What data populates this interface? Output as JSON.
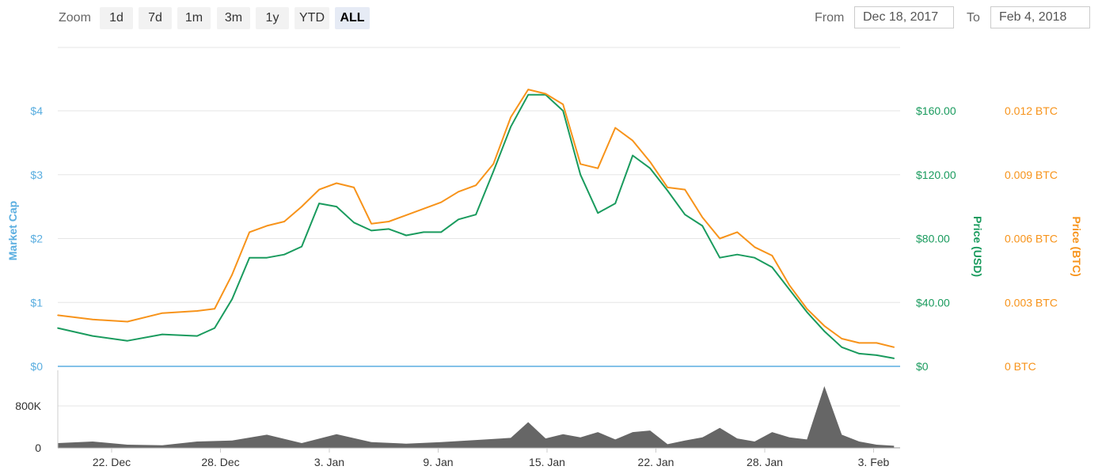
{
  "toolbar": {
    "zoom_label": "Zoom",
    "zoom_buttons": [
      "1d",
      "7d",
      "1m",
      "3m",
      "1y",
      "YTD",
      "ALL"
    ],
    "active_zoom": "ALL",
    "from_label": "From",
    "from_value": "Dec 18, 2017",
    "to_label": "To",
    "to_value": "Feb 4, 2018"
  },
  "chart_data": {
    "type": "line",
    "xlabel": "",
    "x_ticks": [
      "22. Dec",
      "28. Dec",
      "3. Jan",
      "9. Jan",
      "15. Jan",
      "22. Jan",
      "28. Jan",
      "3. Feb"
    ],
    "left_axis": {
      "title": "Market Cap",
      "ticks": [
        "$0",
        "$1",
        "$2",
        "$3",
        "$4"
      ],
      "range": [
        0,
        4
      ],
      "color": "#5aaee0"
    },
    "usd_axis": {
      "title": "Price (USD)",
      "ticks": [
        "$0",
        "$40.00",
        "$80.00",
        "$120.00",
        "$160.00"
      ],
      "range": [
        0,
        160
      ],
      "color": "#1a9b5e"
    },
    "btc_axis": {
      "title": "Price (BTC)",
      "ticks": [
        "0 BTC",
        "0.003 BTC",
        "0.006 BTC",
        "0.009 BTC",
        "0.012 BTC"
      ],
      "range": [
        0,
        0.012
      ],
      "color": "#f7931a"
    },
    "volume_axis": {
      "ticks": [
        "0",
        "800K"
      ],
      "range": [
        0,
        800000
      ]
    },
    "market_cap_note": "Market cap series rendered flat at $0",
    "x_range": [
      "2017-12-18",
      "2018-02-04"
    ],
    "series": [
      {
        "name": "Price (USD)",
        "color": "#1a9b5e",
        "x": [
          "2017-12-18",
          "2017-12-20",
          "2017-12-22",
          "2017-12-24",
          "2017-12-26",
          "2017-12-27",
          "2017-12-28",
          "2017-12-29",
          "2017-12-30",
          "2017-12-31",
          "2018-01-01",
          "2018-01-02",
          "2018-01-03",
          "2018-01-04",
          "2018-01-05",
          "2018-01-06",
          "2018-01-07",
          "2018-01-08",
          "2018-01-09",
          "2018-01-10",
          "2018-01-11",
          "2018-01-12",
          "2018-01-13",
          "2018-01-14",
          "2018-01-15",
          "2018-01-16",
          "2018-01-17",
          "2018-01-18",
          "2018-01-19",
          "2018-01-20",
          "2018-01-21",
          "2018-01-22",
          "2018-01-23",
          "2018-01-24",
          "2018-01-25",
          "2018-01-26",
          "2018-01-27",
          "2018-01-28",
          "2018-01-29",
          "2018-01-30",
          "2018-01-31",
          "2018-02-01",
          "2018-02-02",
          "2018-02-03",
          "2018-02-04"
        ],
        "y": [
          24,
          19,
          16,
          20,
          19,
          24,
          42,
          68,
          68,
          70,
          75,
          102,
          100,
          90,
          85,
          86,
          82,
          84,
          84,
          92,
          95,
          122,
          150,
          170,
          170,
          160,
          120,
          96,
          102,
          132,
          124,
          110,
          95,
          88,
          68,
          70,
          68,
          62,
          48,
          34,
          22,
          12,
          8,
          7,
          5
        ]
      },
      {
        "name": "Price (BTC)",
        "color": "#f7931a",
        "x": [
          "2017-12-18",
          "2017-12-20",
          "2017-12-22",
          "2017-12-24",
          "2017-12-26",
          "2017-12-27",
          "2017-12-28",
          "2017-12-29",
          "2017-12-30",
          "2017-12-31",
          "2018-01-01",
          "2018-01-02",
          "2018-01-03",
          "2018-01-04",
          "2018-01-05",
          "2018-01-06",
          "2018-01-07",
          "2018-01-08",
          "2018-01-09",
          "2018-01-10",
          "2018-01-11",
          "2018-01-12",
          "2018-01-13",
          "2018-01-14",
          "2018-01-15",
          "2018-01-16",
          "2018-01-17",
          "2018-01-18",
          "2018-01-19",
          "2018-01-20",
          "2018-01-21",
          "2018-01-22",
          "2018-01-23",
          "2018-01-24",
          "2018-01-25",
          "2018-01-26",
          "2018-01-27",
          "2018-01-28",
          "2018-01-29",
          "2018-01-30",
          "2018-01-31",
          "2018-02-01",
          "2018-02-02",
          "2018-02-03",
          "2018-02-04"
        ],
        "y": [
          0.0024,
          0.0022,
          0.0021,
          0.0025,
          0.0026,
          0.0027,
          0.0043,
          0.0063,
          0.0066,
          0.0068,
          0.0075,
          0.0083,
          0.0086,
          0.0084,
          0.0067,
          0.0068,
          0.0071,
          0.0074,
          0.0077,
          0.0082,
          0.0085,
          0.0095,
          0.0117,
          0.013,
          0.0128,
          0.0123,
          0.0095,
          0.0093,
          0.0112,
          0.0106,
          0.0096,
          0.0084,
          0.0083,
          0.007,
          0.006,
          0.0063,
          0.0056,
          0.0052,
          0.0038,
          0.0027,
          0.0019,
          0.0013,
          0.0011,
          0.0011,
          0.0009
        ]
      },
      {
        "name": "Volume",
        "color": "#666666",
        "x": [
          "2017-12-18",
          "2017-12-20",
          "2017-12-22",
          "2017-12-24",
          "2017-12-26",
          "2017-12-28",
          "2017-12-30",
          "2018-01-01",
          "2018-01-03",
          "2018-01-05",
          "2018-01-07",
          "2018-01-09",
          "2018-01-11",
          "2018-01-13",
          "2018-01-14",
          "2018-01-15",
          "2018-01-16",
          "2018-01-17",
          "2018-01-18",
          "2018-01-19",
          "2018-01-20",
          "2018-01-21",
          "2018-01-22",
          "2018-01-23",
          "2018-01-24",
          "2018-01-25",
          "2018-01-26",
          "2018-01-27",
          "2018-01-28",
          "2018-01-29",
          "2018-01-30",
          "2018-01-31",
          "2018-02-01",
          "2018-02-02",
          "2018-02-03",
          "2018-02-04"
        ],
        "y": [
          90000,
          120000,
          60000,
          50000,
          120000,
          140000,
          250000,
          90000,
          260000,
          110000,
          80000,
          110000,
          150000,
          190000,
          490000,
          180000,
          260000,
          200000,
          300000,
          160000,
          300000,
          330000,
          70000,
          140000,
          200000,
          380000,
          180000,
          120000,
          300000,
          200000,
          160000,
          1200000,
          250000,
          120000,
          60000,
          40000
        ]
      }
    ]
  }
}
